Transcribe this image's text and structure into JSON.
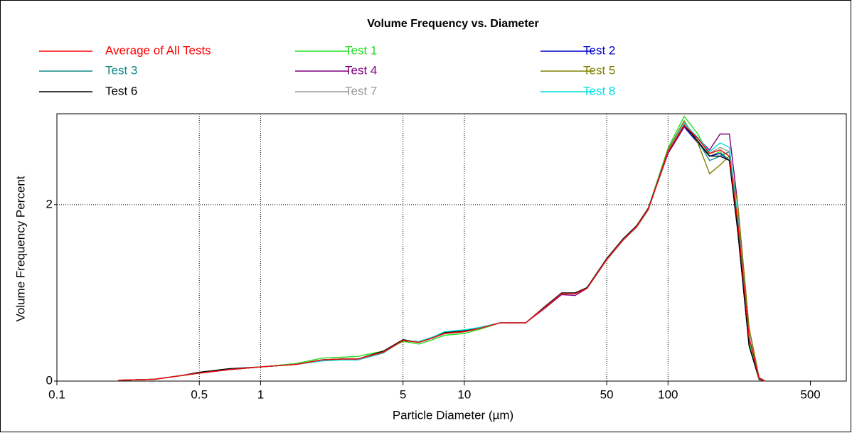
{
  "chart_data": {
    "type": "line",
    "title": "Volume Frequency vs. Diameter",
    "xlabel": "Particle Diameter (µm)",
    "ylabel": "Volume Frequency Percent",
    "xscale": "log",
    "grid": true,
    "legend": "top",
    "x": [
      0.2,
      0.3,
      0.4,
      0.5,
      0.7,
      1,
      1.5,
      2,
      2.5,
      3,
      4,
      5,
      6,
      7,
      8,
      10,
      12,
      15,
      20,
      25,
      30,
      35,
      40,
      50,
      60,
      70,
      80,
      100,
      120,
      140,
      160,
      180,
      200,
      220,
      250,
      280,
      300
    ],
    "xlim": [
      0.1,
      750
    ],
    "xticks": [
      0.1,
      0.5,
      1,
      5,
      10,
      50,
      100,
      500
    ],
    "ylim": [
      0,
      3.03
    ],
    "yticks": [
      0,
      2
    ],
    "series": [
      {
        "name": "Average of All Tests",
        "color": "#ff0000",
        "values": [
          0.01,
          0.02,
          0.06,
          0.09,
          0.13,
          0.16,
          0.19,
          0.24,
          0.25,
          0.25,
          0.33,
          0.46,
          0.44,
          0.49,
          0.54,
          0.56,
          0.6,
          0.66,
          0.66,
          0.84,
          0.99,
          0.99,
          1.05,
          1.38,
          1.6,
          1.75,
          1.95,
          2.6,
          2.9,
          2.75,
          2.58,
          2.62,
          2.55,
          1.8,
          0.5,
          0.03,
          0
        ]
      },
      {
        "name": "Test 1",
        "color": "#22dd22",
        "values": [
          0.01,
          0.02,
          0.06,
          0.09,
          0.13,
          0.16,
          0.2,
          0.26,
          0.27,
          0.28,
          0.34,
          0.45,
          0.42,
          0.47,
          0.52,
          0.54,
          0.59,
          0.66,
          0.66,
          0.84,
          0.99,
          0.99,
          1.05,
          1.38,
          1.61,
          1.76,
          1.96,
          2.64,
          3.0,
          2.8,
          2.55,
          2.6,
          2.5,
          1.7,
          0.45,
          0.02,
          0
        ]
      },
      {
        "name": "Test 2",
        "color": "#0000cc",
        "values": [
          0.01,
          0.02,
          0.06,
          0.09,
          0.13,
          0.16,
          0.19,
          0.24,
          0.25,
          0.25,
          0.33,
          0.46,
          0.44,
          0.49,
          0.55,
          0.57,
          0.6,
          0.66,
          0.66,
          0.84,
          0.99,
          0.99,
          1.06,
          1.38,
          1.6,
          1.75,
          1.95,
          2.58,
          2.88,
          2.7,
          2.55,
          2.58,
          2.5,
          1.7,
          0.4,
          0.02,
          0
        ]
      },
      {
        "name": "Test 3",
        "color": "#138a8a",
        "values": [
          0.01,
          0.02,
          0.06,
          0.09,
          0.13,
          0.16,
          0.19,
          0.23,
          0.24,
          0.24,
          0.32,
          0.46,
          0.44,
          0.49,
          0.54,
          0.56,
          0.6,
          0.66,
          0.66,
          0.84,
          0.99,
          0.99,
          1.05,
          1.38,
          1.6,
          1.74,
          1.94,
          2.6,
          2.92,
          2.72,
          2.5,
          2.55,
          2.6,
          1.85,
          0.5,
          0.03,
          0
        ]
      },
      {
        "name": "Test 4",
        "color": "#800080",
        "values": [
          0.01,
          0.02,
          0.06,
          0.09,
          0.13,
          0.16,
          0.19,
          0.24,
          0.25,
          0.25,
          0.33,
          0.46,
          0.44,
          0.49,
          0.54,
          0.56,
          0.6,
          0.66,
          0.66,
          0.83,
          0.98,
          0.97,
          1.05,
          1.38,
          1.6,
          1.75,
          1.95,
          2.58,
          2.88,
          2.75,
          2.62,
          2.8,
          2.8,
          2.0,
          0.6,
          0.04,
          0
        ]
      },
      {
        "name": "Test 5",
        "color": "#808000",
        "values": [
          0.01,
          0.02,
          0.06,
          0.09,
          0.13,
          0.16,
          0.19,
          0.24,
          0.25,
          0.25,
          0.33,
          0.46,
          0.44,
          0.49,
          0.54,
          0.56,
          0.6,
          0.66,
          0.66,
          0.84,
          0.99,
          0.99,
          1.05,
          1.38,
          1.6,
          1.75,
          1.95,
          2.62,
          2.95,
          2.7,
          2.35,
          2.45,
          2.55,
          2.0,
          0.6,
          0.04,
          0
        ]
      },
      {
        "name": "Test 6",
        "color": "#000000",
        "values": [
          0.01,
          0.02,
          0.06,
          0.1,
          0.14,
          0.16,
          0.19,
          0.24,
          0.25,
          0.25,
          0.34,
          0.47,
          0.44,
          0.5,
          0.55,
          0.57,
          0.61,
          0.66,
          0.66,
          0.85,
          1.0,
          1.0,
          1.06,
          1.39,
          1.61,
          1.76,
          1.96,
          2.6,
          2.9,
          2.72,
          2.55,
          2.55,
          2.5,
          1.7,
          0.4,
          0.02,
          0
        ]
      },
      {
        "name": "Test 7",
        "color": "#999999",
        "values": [
          0.01,
          0.02,
          0.06,
          0.09,
          0.13,
          0.16,
          0.19,
          0.24,
          0.25,
          0.25,
          0.33,
          0.46,
          0.44,
          0.49,
          0.54,
          0.56,
          0.6,
          0.66,
          0.66,
          0.84,
          0.99,
          0.99,
          1.05,
          1.37,
          1.59,
          1.74,
          1.94,
          2.6,
          2.93,
          2.75,
          2.58,
          2.65,
          2.6,
          1.85,
          0.5,
          0.03,
          0
        ]
      },
      {
        "name": "Test 8",
        "color": "#00dddd",
        "values": [
          0.01,
          0.02,
          0.06,
          0.09,
          0.13,
          0.16,
          0.19,
          0.23,
          0.24,
          0.24,
          0.33,
          0.46,
          0.45,
          0.5,
          0.56,
          0.58,
          0.61,
          0.66,
          0.66,
          0.84,
          0.99,
          0.99,
          1.05,
          1.38,
          1.6,
          1.75,
          1.95,
          2.6,
          2.92,
          2.76,
          2.6,
          2.7,
          2.65,
          1.85,
          0.5,
          0.03,
          0
        ]
      }
    ]
  }
}
